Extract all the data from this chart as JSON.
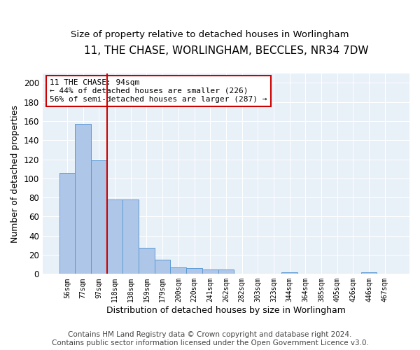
{
  "title": "11, THE CHASE, WORLINGHAM, BECCLES, NR34 7DW",
  "subtitle": "Size of property relative to detached houses in Worlingham",
  "xlabel": "Distribution of detached houses by size in Worlingham",
  "ylabel": "Number of detached properties",
  "categories": [
    "56sqm",
    "77sqm",
    "97sqm",
    "118sqm",
    "138sqm",
    "159sqm",
    "179sqm",
    "200sqm",
    "220sqm",
    "241sqm",
    "262sqm",
    "282sqm",
    "303sqm",
    "323sqm",
    "344sqm",
    "364sqm",
    "385sqm",
    "405sqm",
    "426sqm",
    "446sqm",
    "467sqm"
  ],
  "values": [
    106,
    157,
    119,
    78,
    78,
    27,
    15,
    7,
    6,
    5,
    5,
    0,
    0,
    0,
    2,
    0,
    0,
    0,
    0,
    2,
    0
  ],
  "bar_color": "#aec6e8",
  "bar_edge_color": "#5b9bd5",
  "annotation_text": "11 THE CHASE: 94sqm\n← 44% of detached houses are smaller (226)\n56% of semi-detached houses are larger (287) →",
  "annotation_box_color": "#ffffff",
  "annotation_box_edge": "#cc0000",
  "ylim": [
    0,
    210
  ],
  "yticks": [
    0,
    20,
    40,
    60,
    80,
    100,
    120,
    140,
    160,
    180,
    200
  ],
  "background_color": "#e8f0f8",
  "grid_color": "#ffffff",
  "footer": "Contains HM Land Registry data © Crown copyright and database right 2024.\nContains public sector information licensed under the Open Government Licence v3.0.",
  "title_fontsize": 11,
  "subtitle_fontsize": 9.5,
  "xlabel_fontsize": 9,
  "ylabel_fontsize": 9,
  "annotation_fontsize": 8,
  "footer_fontsize": 7.5
}
